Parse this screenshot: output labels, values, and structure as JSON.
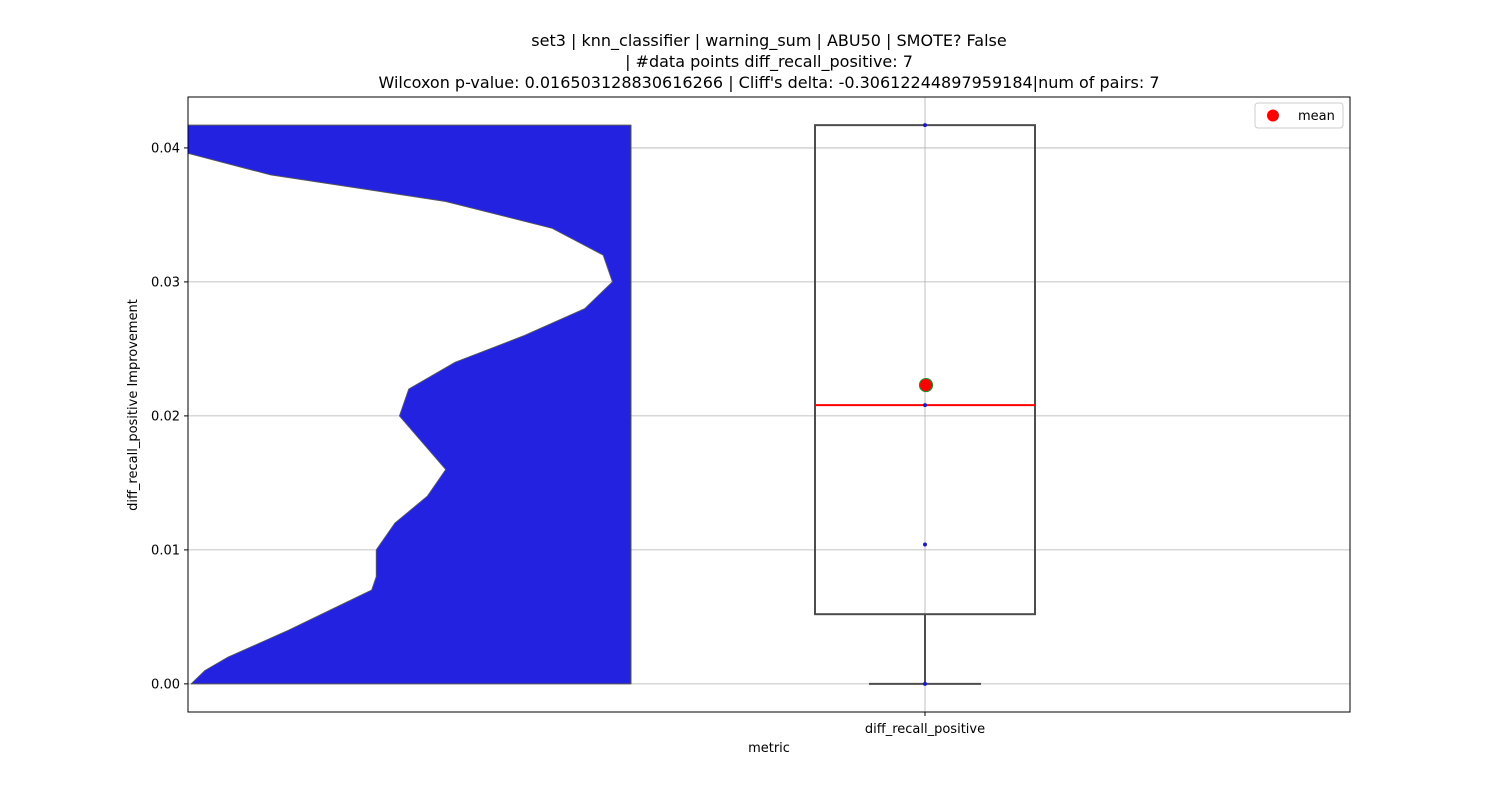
{
  "chart_data": {
    "type": "violin+box",
    "title_lines": [
      "set3 | knn_classifier | warning_sum | ABU50 | SMOTE? False",
      "| #data points diff_recall_positive: 7",
      "Wilcoxon p-value: 0.016503128830616266 | Cliff's delta: -0.30612244897959184|num of pairs: 7"
    ],
    "xlabel": "metric",
    "ylabel": "diff_recall_positive Improvement",
    "categories": [
      "diff_recall_positive"
    ],
    "ylim": [
      -0.0021,
      0.0438
    ],
    "yticks": [
      0.0,
      0.01,
      0.02,
      0.03,
      0.04
    ],
    "ytick_labels": [
      "0.00",
      "0.01",
      "0.02",
      "0.03",
      "0.04"
    ],
    "grid": true,
    "legend": {
      "position": "top-right",
      "entries": [
        {
          "label": "mean",
          "color": "#ff0000",
          "marker": "circle"
        }
      ]
    },
    "violin": {
      "color": "#2222e0",
      "edge_color": "#555555",
      "density_profile": [
        {
          "y": 0.0417,
          "density": 1.0
        },
        {
          "y": 0.0396,
          "density": 1.0
        },
        {
          "y": 0.038,
          "density": 0.78
        },
        {
          "y": 0.036,
          "density": 0.4
        },
        {
          "y": 0.034,
          "density": 0.17
        },
        {
          "y": 0.032,
          "density": 0.06
        },
        {
          "y": 0.03,
          "density": 0.04
        },
        {
          "y": 0.028,
          "density": 0.1
        },
        {
          "y": 0.026,
          "density": 0.23
        },
        {
          "y": 0.024,
          "density": 0.38
        },
        {
          "y": 0.022,
          "density": 0.48
        },
        {
          "y": 0.02,
          "density": 0.5
        },
        {
          "y": 0.018,
          "density": 0.45
        },
        {
          "y": 0.016,
          "density": 0.4
        },
        {
          "y": 0.014,
          "density": 0.44
        },
        {
          "y": 0.012,
          "density": 0.51
        },
        {
          "y": 0.01,
          "density": 0.55
        },
        {
          "y": 0.008,
          "density": 0.55
        },
        {
          "y": 0.007,
          "density": 0.56
        },
        {
          "y": 0.006,
          "density": 0.62
        },
        {
          "y": 0.004,
          "density": 0.74
        },
        {
          "y": 0.002,
          "density": 0.87
        },
        {
          "y": 0.001,
          "density": 0.92
        },
        {
          "y": 0.0,
          "density": 0.95
        }
      ]
    },
    "box": {
      "min": 0.0,
      "q1": 0.0052,
      "median": 0.0208,
      "q3": 0.0417,
      "max": 0.0417,
      "mean": 0.0223,
      "median_color": "#ff0000",
      "mean_color": "#ff0000",
      "mean_edge_color": "#2a8a2a"
    },
    "points": [
      0.0,
      0.0104,
      0.0208,
      0.0417
    ]
  }
}
